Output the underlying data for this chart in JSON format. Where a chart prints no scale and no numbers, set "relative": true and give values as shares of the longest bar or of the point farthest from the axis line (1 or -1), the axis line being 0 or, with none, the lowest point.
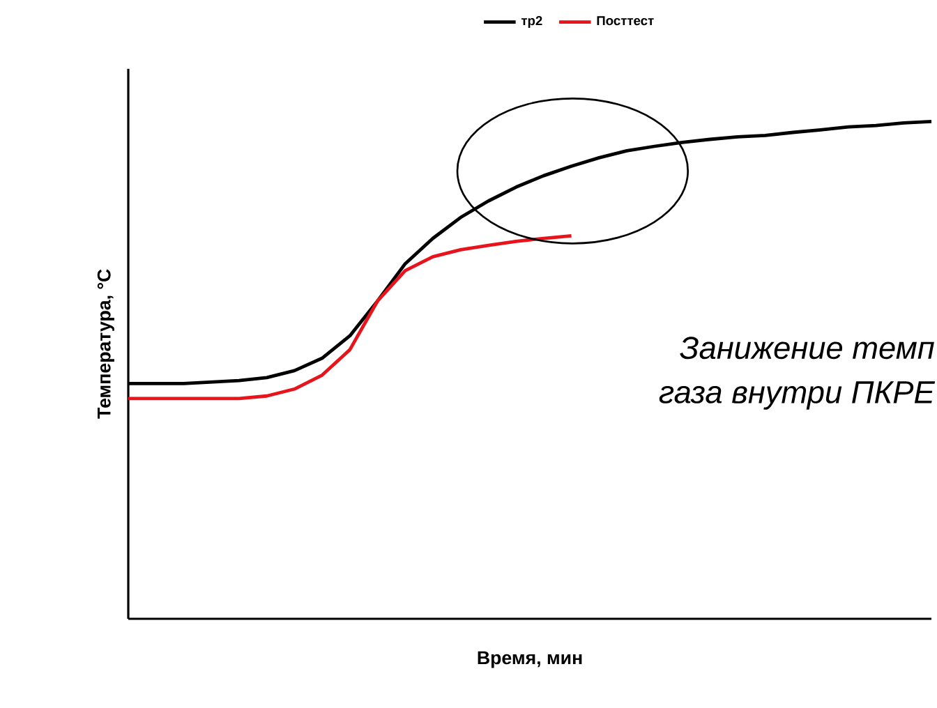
{
  "chart_data": {
    "type": "line",
    "relative": true,
    "xlabel": "Время, мин",
    "ylabel": "Температура, °C",
    "legend": "top",
    "categories": [
      null,
      null,
      null,
      null,
      null,
      null,
      null,
      null,
      null,
      null,
      null,
      null,
      null,
      null,
      null,
      null,
      null,
      null,
      null,
      null,
      null,
      null,
      null,
      null,
      null,
      null,
      null,
      null,
      null,
      null
    ],
    "series": [
      {
        "name": "тр2",
        "color": "#000000",
        "values": [
          0.473,
          0.473,
          0.473,
          0.476,
          0.479,
          0.485,
          0.499,
          0.524,
          0.569,
          0.639,
          0.714,
          0.765,
          0.807,
          0.84,
          0.868,
          0.891,
          0.91,
          0.927,
          0.941,
          0.95,
          0.958,
          0.964,
          0.969,
          0.972,
          0.978,
          0.983,
          0.989,
          0.992,
          0.997,
          1.0
        ]
      },
      {
        "name": "Посттест",
        "color": "#e8141c",
        "values": [
          0.443,
          0.443,
          0.443,
          0.443,
          0.443,
          0.448,
          0.462,
          0.49,
          0.541,
          0.639,
          0.7,
          0.728,
          0.742,
          0.751,
          0.759,
          0.765,
          0.77,
          null,
          null,
          null,
          null,
          null,
          null,
          null,
          null,
          null,
          null,
          null,
          null,
          null
        ]
      }
    ],
    "annotations": [
      "Занижение темп",
      "газа внутри ПКРЕ"
    ]
  }
}
